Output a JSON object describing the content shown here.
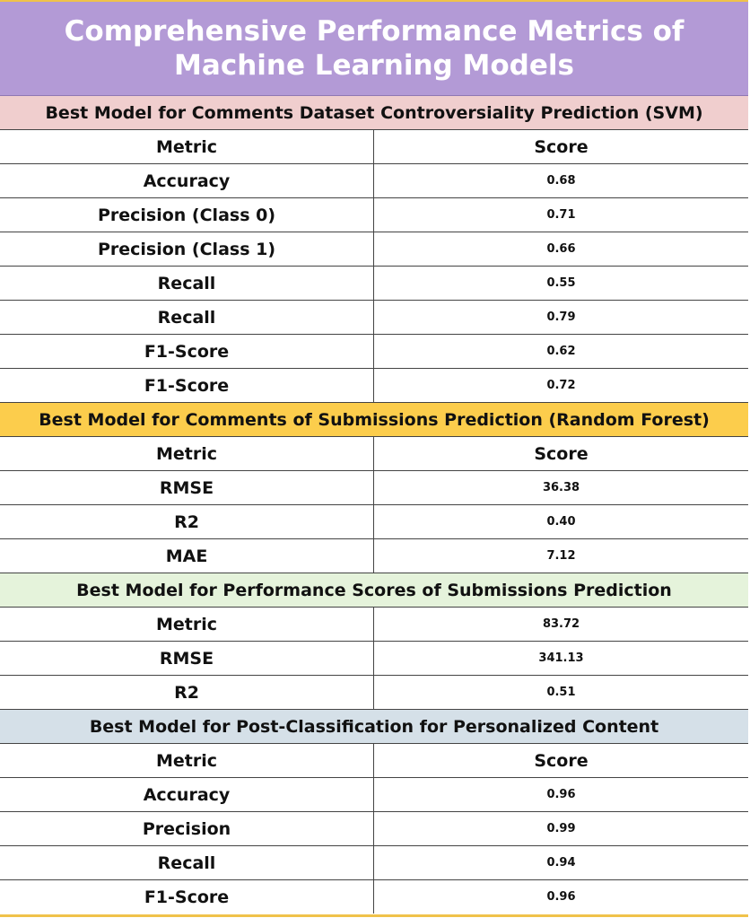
{
  "title": {
    "line1": "Comprehensive Performance Metrics of",
    "line2": "Machine Learning Models"
  },
  "colors": {
    "title_bg": "#b39ad6",
    "section1_bg": "#f0cece",
    "section2_bg": "#fccd4c",
    "section3_bg": "#e5f3db",
    "section4_bg": "#d5e0e8",
    "border_accent": "#f0c24a"
  },
  "sections": [
    {
      "header": "Best Model for Comments Dataset Controversiality Prediction (SVM)",
      "columns": [
        "Metric",
        "Score"
      ],
      "rows": [
        [
          "Accuracy",
          "0.68"
        ],
        [
          "Precision (Class 0)",
          "0.71"
        ],
        [
          "Precision (Class 1)",
          "0.66"
        ],
        [
          "Recall",
          "0.55"
        ],
        [
          "Recall",
          "0.79"
        ],
        [
          "F1-Score",
          "0.62"
        ],
        [
          "F1-Score",
          "0.72"
        ]
      ]
    },
    {
      "header": "Best Model for Comments of Submissions Prediction (Random Forest)",
      "columns": [
        "Metric",
        "Score"
      ],
      "rows": [
        [
          "RMSE",
          "36.38"
        ],
        [
          "R2",
          "0.40"
        ],
        [
          "MAE",
          "7.12"
        ]
      ]
    },
    {
      "header": "Best Model for Performance Scores of Submissions Prediction",
      "columns": [],
      "rows": [
        [
          "Metric",
          "83.72"
        ],
        [
          "RMSE",
          "341.13"
        ],
        [
          "R2",
          "0.51"
        ]
      ]
    },
    {
      "header": "Best Model for Post-Classification for Personalized Content",
      "columns": [
        "Metric",
        "Score"
      ],
      "rows": [
        [
          "Accuracy",
          "0.96"
        ],
        [
          "Precision",
          "0.99"
        ],
        [
          "Recall",
          "0.94"
        ],
        [
          "F1-Score",
          "0.96"
        ]
      ]
    }
  ]
}
